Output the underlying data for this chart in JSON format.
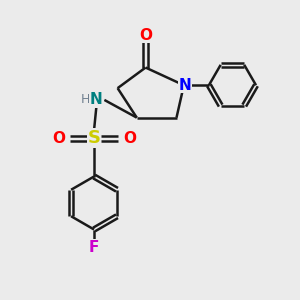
{
  "background_color": "#ebebeb",
  "bond_color": "#1a1a1a",
  "atom_colors": {
    "O": "#ff0000",
    "N_ring": "#0000ff",
    "N_amine": "#008080",
    "S": "#cccc00",
    "F": "#cc00cc",
    "H": "#708090"
  },
  "lw": 1.8
}
